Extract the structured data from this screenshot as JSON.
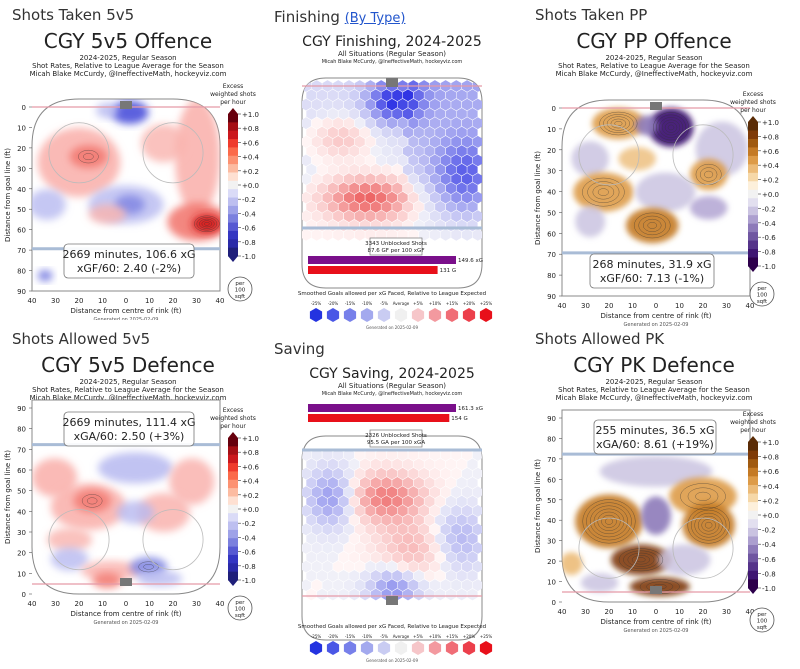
{
  "sections": {
    "p1": {
      "title": "Shots Taken 5v5"
    },
    "p2": {
      "title": "Finishing",
      "link": "(By Type)"
    },
    "p3": {
      "title": "Shots Taken PP"
    },
    "p4": {
      "title": "Shots Allowed 5v5"
    },
    "p5": {
      "title": "Saving"
    },
    "p6": {
      "title": "Shots Allowed PK"
    }
  },
  "heat": {
    "p1": {
      "title": "CGY 5v5 Offence",
      "sub1": "2024-2025, Regular Season",
      "sub2": "Shot Rates, Relative to League Average for the Season",
      "sub3": "Micah Blake McCurdy, @IneffectiveMath, hockeyviz.com",
      "stat1": "2669 minutes, 106.6 xG",
      "stat2": "xGF/60: 2.40 (-2%)",
      "cbar_title": [
        "Excess",
        "weighted shots",
        "per hour"
      ],
      "cbar_ticks": [
        "+1.0",
        "+0.8",
        "+0.6",
        "+0.4",
        "+0.2",
        "+0.0",
        "-0.2",
        "-0.4",
        "-0.6",
        "-0.8",
        "-1.0"
      ],
      "ylabel": "Distance from goal line (ft)",
      "xlabel": "Distance from centre of rink (ft)",
      "yticks": [
        "0",
        "10",
        "20",
        "30",
        "40",
        "50",
        "60",
        "70",
        "80",
        "90"
      ],
      "xticks": [
        "40",
        "30",
        "20",
        "10",
        "0",
        "10",
        "20",
        "30",
        "40"
      ],
      "per": [
        "per",
        "100",
        "sqft"
      ],
      "generated": "Generated on 2025-02-09"
    },
    "p3": {
      "title": "CGY PP Offence",
      "sub1": "2024-2025, Regular Season",
      "sub2": "Shot Rates, Relative to League Average for the Season",
      "sub3": "Micah Blake McCurdy, @IneffectiveMath, hockeyviz.com",
      "stat1": "268 minutes, 31.9 xG",
      "stat2": "xGF/60: 7.13 (-1%)",
      "cbar_title": [
        "Excess",
        "weighted shots",
        "per hour"
      ],
      "cbar_ticks": [
        "+1.0",
        "+0.8",
        "+0.6",
        "+0.4",
        "+0.2",
        "+0.0",
        "-0.2",
        "-0.4",
        "-0.6",
        "-0.8",
        "-1.0"
      ],
      "ylabel": "Distance from goal line (ft)",
      "xlabel": "Distance from centre of rink (ft)",
      "yticks": [
        "0",
        "10",
        "20",
        "30",
        "40",
        "50",
        "60",
        "70",
        "80",
        "90"
      ],
      "xticks": [
        "40",
        "30",
        "20",
        "10",
        "0",
        "10",
        "20",
        "30",
        "40"
      ],
      "per": [
        "per",
        "100",
        "sqft"
      ],
      "generated": "Generated on 2025-02-09"
    },
    "p4": {
      "title": "CGY 5v5 Defence",
      "sub1": "2024-2025, Regular Season",
      "sub2": "Shot Rates, Relative to League Average for the Season",
      "sub3": "Micah Blake McCurdy, @IneffectiveMath, hockeyviz.com",
      "stat1": "2669 minutes, 111.4 xG",
      "stat2": "xGA/60: 2.50 (+3%)",
      "cbar_title": [
        "Excess",
        "weighted shots",
        "per hour"
      ],
      "cbar_ticks": [
        "+1.0",
        "+0.8",
        "+0.6",
        "+0.4",
        "+0.2",
        "+0.0",
        "-0.2",
        "-0.4",
        "-0.6",
        "-0.8",
        "-1.0"
      ],
      "ylabel": "Distance from goal line (ft)",
      "xlabel": "Distance from centre of rink (ft)",
      "yticks": [
        "90",
        "80",
        "70",
        "60",
        "50",
        "40",
        "30",
        "20",
        "10",
        "0"
      ],
      "xticks": [
        "40",
        "30",
        "20",
        "10",
        "0",
        "10",
        "20",
        "30",
        "40"
      ],
      "per": [
        "per",
        "100",
        "sqft"
      ],
      "generated": "Generated on 2025-02-09"
    },
    "p6": {
      "title": "CGY PK Defence",
      "sub1": "2024-2025, Regular Season",
      "sub2": "Shot Rates, Relative to League Average for the Season",
      "sub3": "Micah Blake McCurdy, @IneffectiveMath, hockeyviz.com",
      "stat1": "255 minutes, 36.5 xG",
      "stat2": "xGA/60: 8.61 (+19%)",
      "cbar_title": [
        "Excess",
        "weighted shots",
        "per hour"
      ],
      "cbar_ticks": [
        "+1.0",
        "+0.8",
        "+0.6",
        "+0.4",
        "+0.2",
        "+0.0",
        "-0.2",
        "-0.4",
        "-0.6",
        "-0.8",
        "-1.0"
      ],
      "ylabel": "Distance from goal line (ft)",
      "xlabel": "Distance from centre of rink (ft)",
      "yticks": [
        "90",
        "80",
        "70",
        "60",
        "50",
        "40",
        "30",
        "20",
        "10",
        "0"
      ],
      "xticks": [
        "40",
        "30",
        "20",
        "10",
        "0",
        "10",
        "20",
        "30",
        "40"
      ],
      "per": [
        "per",
        "100",
        "sqft"
      ],
      "generated": "Generated on 2025-02-09"
    }
  },
  "finish": {
    "p2": {
      "title": "CGY Finishing, 2024-2025",
      "sub1": "All Situations (Regular Season)",
      "sub2": "Micah Blake McCurdy, @IneffectiveMath, hockeyviz.com",
      "box1": "3343 Unblocked Shots",
      "box2": "87.6 GF per 100 xGF",
      "bars": [
        {
          "label": "149.6 xG",
          "value": 149.6,
          "color": "#7a0f8a"
        },
        {
          "label": "131 G",
          "value": 131,
          "color": "#e8101a"
        }
      ],
      "legend_title": "Smoothed Goals allowed per xG Faced, Relative to League Expected",
      "legend_labels": [
        "-25%",
        "-20%",
        "-15%",
        "-10%",
        "-5%",
        "Average",
        "+5%",
        "+10%",
        "+15%",
        "+20%",
        "+25%"
      ],
      "generated": "Generated on 2025-02-09"
    },
    "p5": {
      "title": "CGY Saving, 2024-2025",
      "sub1": "All Situations (Regular Season)",
      "sub2": "Micah Blake McCurdy, @IneffectiveMath, hockeyviz.com",
      "box1": "2326 Unblocked Shots",
      "box2": "95.5 GA per 100 xGA",
      "bars": [
        {
          "label": "161.3 xG",
          "value": 161.3,
          "color": "#7a0f8a"
        },
        {
          "label": "154 G",
          "value": 154,
          "color": "#e8101a"
        }
      ],
      "legend_title": "Smoothed Goals allowed per xG Faced, Relative to League Expected",
      "legend_labels": [
        "-25%",
        "-20%",
        "-15%",
        "-10%",
        "-5%",
        "Average",
        "+5%",
        "+10%",
        "+15%",
        "+20%",
        "+25%"
      ],
      "generated": "Generated on 2025-02-09"
    }
  },
  "chart_data": [
    {
      "type": "heatmap",
      "title": "CGY 5v5 Offence",
      "colorbar": {
        "label": "Excess weighted shots per hour",
        "range": [
          -1.0,
          1.0
        ]
      },
      "xlabel": "Distance from centre of rink (ft)",
      "ylabel": "Distance from goal line (ft)",
      "stats": {
        "minutes": 2669,
        "xG": 106.6,
        "xGF_per_60": 2.4,
        "relative_pct": -2
      }
    },
    {
      "type": "heatmap",
      "title": "CGY Finishing, 2024-2025",
      "unblocked_shots": 3343,
      "GF_per_100_xGF": 87.6,
      "bars": {
        "xG": 149.6,
        "G": 131
      }
    },
    {
      "type": "heatmap",
      "title": "CGY PP Offence",
      "colorbar": {
        "label": "Excess weighted shots per hour",
        "range": [
          -1.0,
          1.0
        ]
      },
      "xlabel": "Distance from centre of rink (ft)",
      "ylabel": "Distance from goal line (ft)",
      "stats": {
        "minutes": 268,
        "xG": 31.9,
        "xGF_per_60": 7.13,
        "relative_pct": -1
      }
    },
    {
      "type": "heatmap",
      "title": "CGY 5v5 Defence",
      "colorbar": {
        "label": "Excess weighted shots per hour",
        "range": [
          -1.0,
          1.0
        ]
      },
      "xlabel": "Distance from centre of rink (ft)",
      "ylabel": "Distance from goal line (ft)",
      "stats": {
        "minutes": 2669,
        "xG": 111.4,
        "xGA_per_60": 2.5,
        "relative_pct": 3
      }
    },
    {
      "type": "heatmap",
      "title": "CGY Saving, 2024-2025",
      "unblocked_shots": 2326,
      "GA_per_100_xGA": 95.5,
      "bars": {
        "xG": 161.3,
        "G": 154
      }
    },
    {
      "type": "heatmap",
      "title": "CGY PK Defence",
      "colorbar": {
        "label": "Excess weighted shots per hour",
        "range": [
          -1.0,
          1.0
        ]
      },
      "xlabel": "Distance from centre of rink (ft)",
      "ylabel": "Distance from goal line (ft)",
      "stats": {
        "minutes": 255,
        "xG": 36.5,
        "xGA_per_60": 8.61,
        "relative_pct": 19
      }
    }
  ]
}
